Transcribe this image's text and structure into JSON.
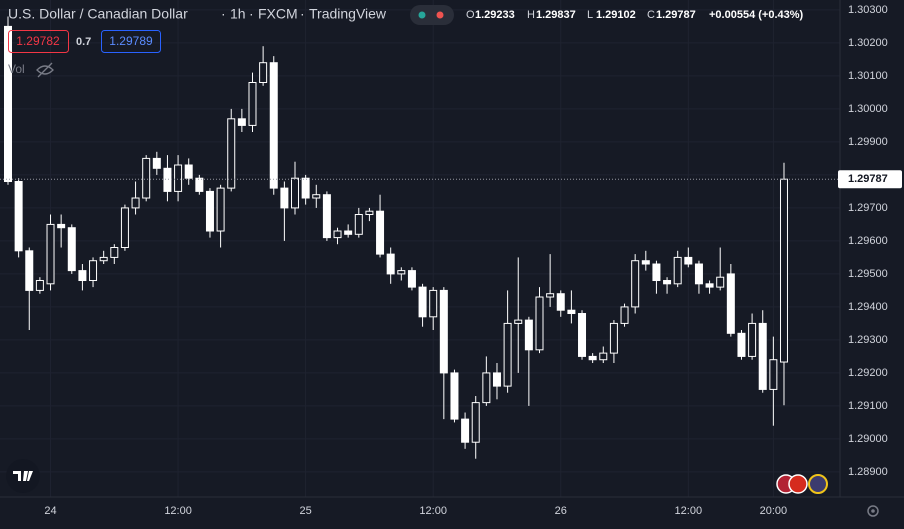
{
  "header": {
    "symbol": "U.S. Dollar / Canadian Dollar",
    "interval": "1h",
    "exchange": "FXCM",
    "platform": "TradingView",
    "ohlc": [
      {
        "key": "O",
        "value": "1.29233"
      },
      {
        "key": "H",
        "value": "1.29837"
      },
      {
        "key": "L",
        "value": "1.29102"
      },
      {
        "key": "C",
        "value": "1.29787"
      }
    ],
    "change": "+0.00554 (+0.43%)"
  },
  "indicators": {
    "bid": "1.29782",
    "spread": "0.7",
    "ask": "1.29789",
    "volume": "Vol"
  },
  "chart_data": {
    "type": "candlestick",
    "categories": [
      null,
      null,
      null,
      null,
      "24",
      null,
      null,
      null,
      null,
      null,
      null,
      null,
      null,
      null,
      null,
      null,
      "12:00",
      null,
      null,
      null,
      null,
      null,
      null,
      null,
      null,
      null,
      null,
      null,
      "25",
      null,
      null,
      null,
      null,
      null,
      null,
      null,
      null,
      null,
      null,
      null,
      "12:00",
      null,
      null,
      null,
      null,
      null,
      null,
      null,
      null,
      null,
      null,
      null,
      "26",
      null,
      null,
      null,
      null,
      null,
      null,
      null,
      null,
      null,
      null,
      null,
      "12:00",
      null,
      null,
      null,
      null,
      null,
      null,
      null,
      "20:00",
      null
    ],
    "open": [
      1.3025,
      1.2978,
      1.2957,
      1.2945,
      1.2947,
      1.2965,
      1.2964,
      1.2951,
      1.2948,
      1.2954,
      1.2955,
      1.2958,
      1.297,
      1.2973,
      1.2985,
      1.2982,
      1.2975,
      1.2983,
      1.2979,
      1.2975,
      1.2963,
      1.2976,
      1.2997,
      1.2995,
      1.3008,
      1.3014,
      1.2976,
      1.297,
      1.2979,
      1.2973,
      1.2974,
      1.2961,
      1.2963,
      1.2962,
      1.2968,
      1.2969,
      1.2956,
      1.295,
      1.2951,
      1.2946,
      1.2937,
      1.2945,
      1.292,
      1.2906,
      1.2899,
      1.2911,
      1.292,
      1.2916,
      1.2935,
      1.2936,
      1.2927,
      1.2943,
      1.2944,
      1.2939,
      1.2938,
      1.2925,
      1.2924,
      1.2926,
      1.2935,
      1.294,
      1.2954,
      1.2953,
      1.2948,
      1.2947,
      1.2955,
      1.2953,
      1.2947,
      1.2946,
      1.295,
      1.2932,
      1.2925,
      1.2935,
      1.2915,
      1.29233
    ],
    "high": [
      1.3028,
      1.2979,
      1.2958,
      1.2949,
      1.2968,
      1.2968,
      1.2965,
      1.2953,
      1.2955,
      1.2957,
      1.2959,
      1.2971,
      1.2978,
      1.2986,
      1.2987,
      1.2986,
      1.2986,
      1.2985,
      1.298,
      1.2976,
      1.2977,
      1.3,
      1.3,
      1.3011,
      1.3019,
      1.3016,
      1.2978,
      1.2984,
      1.298,
      1.2977,
      1.2975,
      1.2964,
      1.2965,
      1.297,
      1.297,
      1.2974,
      1.2958,
      1.2952,
      1.2952,
      1.2947,
      1.2946,
      1.2946,
      1.2921,
      1.2908,
      1.2913,
      1.2925,
      1.2923,
      1.2945,
      1.2955,
      1.2937,
      1.2946,
      1.2956,
      1.2945,
      1.2945,
      1.2939,
      1.2926,
      1.2928,
      1.2936,
      1.2941,
      1.2956,
      1.2957,
      1.2954,
      1.2949,
      1.2957,
      1.2958,
      1.2954,
      1.2948,
      1.2958,
      1.2953,
      1.2933,
      1.2938,
      1.2939,
      1.2931,
      1.29837
    ],
    "low": [
      1.2977,
      1.2955,
      1.2933,
      1.2944,
      1.2945,
      1.2958,
      1.295,
      1.2945,
      1.2946,
      1.2953,
      1.2953,
      1.2957,
      1.2968,
      1.2972,
      1.298,
      1.2972,
      1.2972,
      1.2977,
      1.2974,
      1.2961,
      1.2958,
      1.2975,
      1.2993,
      1.2993,
      1.3007,
      1.2974,
      1.296,
      1.2968,
      1.2971,
      1.297,
      1.296,
      1.2959,
      1.2961,
      1.2961,
      1.2966,
      1.2955,
      1.2947,
      1.2948,
      1.2945,
      1.2934,
      1.2933,
      1.2906,
      1.2905,
      1.2897,
      1.2894,
      1.291,
      1.2912,
      1.2914,
      1.292,
      1.291,
      1.2926,
      1.294,
      1.2937,
      1.2935,
      1.2924,
      1.2923,
      1.2923,
      1.2923,
      1.2934,
      1.2938,
      1.2951,
      1.2944,
      1.2944,
      1.2946,
      1.2952,
      1.2944,
      1.2944,
      1.2945,
      1.2931,
      1.2924,
      1.2924,
      1.2914,
      1.2904,
      1.29102
    ],
    "close": [
      1.2978,
      1.2957,
      1.2945,
      1.2948,
      1.2965,
      1.2964,
      1.2951,
      1.2948,
      1.2954,
      1.2955,
      1.2958,
      1.297,
      1.2973,
      1.2985,
      1.2982,
      1.2975,
      1.2983,
      1.2979,
      1.2975,
      1.2963,
      1.2976,
      1.2997,
      1.2995,
      1.3008,
      1.3014,
      1.2976,
      1.297,
      1.2979,
      1.2973,
      1.2974,
      1.2961,
      1.2963,
      1.2962,
      1.2968,
      1.2969,
      1.2956,
      1.295,
      1.2951,
      1.2946,
      1.2937,
      1.2945,
      1.292,
      1.2906,
      1.2899,
      1.2911,
      1.292,
      1.2916,
      1.2935,
      1.2936,
      1.2927,
      1.2943,
      1.2944,
      1.2939,
      1.2938,
      1.2925,
      1.2924,
      1.2926,
      1.2935,
      1.294,
      1.2954,
      1.2953,
      1.2948,
      1.2947,
      1.2955,
      1.2953,
      1.2947,
      1.2946,
      1.2949,
      1.2932,
      1.2925,
      1.2935,
      1.2915,
      1.2924,
      1.29787
    ],
    "ylim": [
      1.28824,
      1.3033
    ],
    "yticks": [
      {
        "value": 1.303,
        "label": "1.30300"
      },
      {
        "value": 1.302,
        "label": "1.30200"
      },
      {
        "value": 1.301,
        "label": "1.30100"
      },
      {
        "value": 1.3,
        "label": "1.30000"
      },
      {
        "value": 1.299,
        "label": "1.29900"
      },
      {
        "value": 1.298,
        "label": "1.29800"
      },
      {
        "value": 1.297,
        "label": "1.29700"
      },
      {
        "value": 1.296,
        "label": "1.29600"
      },
      {
        "value": 1.295,
        "label": "1.29500"
      },
      {
        "value": 1.294,
        "label": "1.29400"
      },
      {
        "value": 1.293,
        "label": "1.29300"
      },
      {
        "value": 1.292,
        "label": "1.29200"
      },
      {
        "value": 1.291,
        "label": "1.29100"
      },
      {
        "value": 1.29,
        "label": "1.29000"
      },
      {
        "value": 1.289,
        "label": "1.28900"
      }
    ],
    "last_price": {
      "value": 1.29787,
      "label": "1.29787"
    },
    "grid": true,
    "up_color": "#161a25",
    "down_color": "#ffffff",
    "wick_color": "#ffffff"
  }
}
